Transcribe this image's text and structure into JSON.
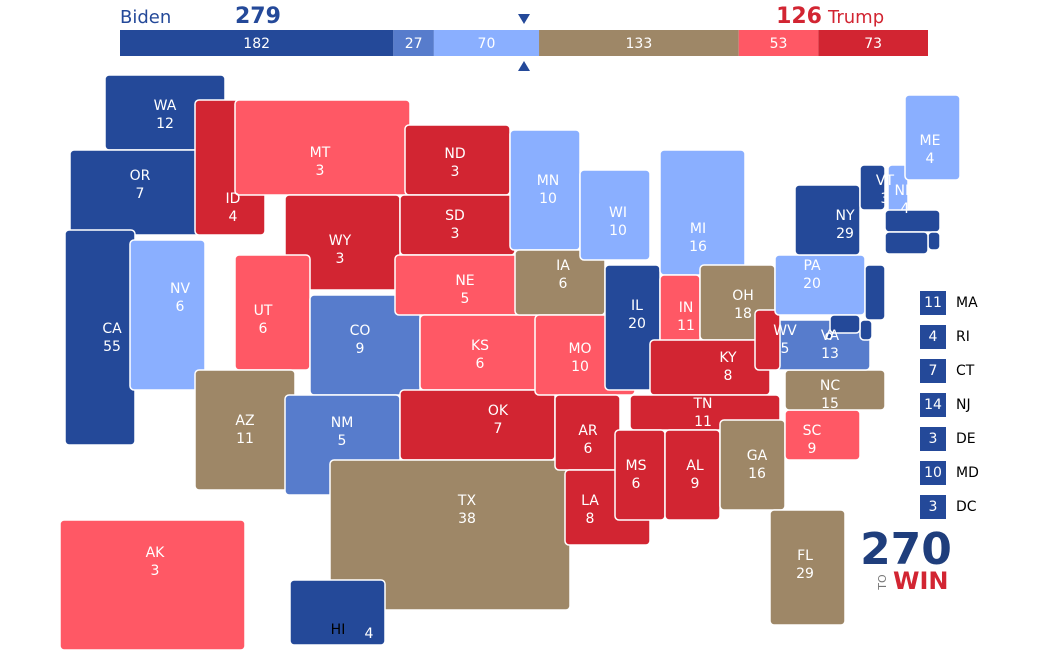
{
  "header": {
    "left": {
      "name": "Biden",
      "votes": 279,
      "color": "#244999"
    },
    "right": {
      "name": "Trump",
      "votes": 126,
      "color": "#d22532"
    },
    "segments": [
      {
        "value": 182,
        "color": "#244999"
      },
      {
        "value": 27,
        "color": "#577ccc"
      },
      {
        "value": 70,
        "color": "#8aafff"
      },
      {
        "value": 133,
        "color": "#9e8767"
      },
      {
        "value": 53,
        "color": "#ff5865"
      },
      {
        "value": 73,
        "color": "#d22532"
      }
    ]
  },
  "map": {
    "states": [
      {
        "abbr": "WA",
        "votes": 12,
        "color": "#244999"
      },
      {
        "abbr": "OR",
        "votes": 7,
        "color": "#244999"
      },
      {
        "abbr": "CA",
        "votes": 55,
        "color": "#244999"
      },
      {
        "abbr": "NV",
        "votes": 6,
        "color": "#8aafff"
      },
      {
        "abbr": "ID",
        "votes": 4,
        "color": "#d22532"
      },
      {
        "abbr": "MT",
        "votes": 3,
        "color": "#ff5865"
      },
      {
        "abbr": "WY",
        "votes": 3,
        "color": "#d22532"
      },
      {
        "abbr": "UT",
        "votes": 6,
        "color": "#ff5865"
      },
      {
        "abbr": "CO",
        "votes": 9,
        "color": "#577ccc"
      },
      {
        "abbr": "AZ",
        "votes": 11,
        "color": "#9e8767"
      },
      {
        "abbr": "NM",
        "votes": 5,
        "color": "#577ccc"
      },
      {
        "abbr": "ND",
        "votes": 3,
        "color": "#d22532"
      },
      {
        "abbr": "SD",
        "votes": 3,
        "color": "#d22532"
      },
      {
        "abbr": "NE",
        "votes": 5,
        "color": "#ff5865"
      },
      {
        "abbr": "KS",
        "votes": 6,
        "color": "#ff5865"
      },
      {
        "abbr": "OK",
        "votes": 7,
        "color": "#d22532"
      },
      {
        "abbr": "TX",
        "votes": 38,
        "color": "#9e8767"
      },
      {
        "abbr": "MN",
        "votes": 10,
        "color": "#8aafff"
      },
      {
        "abbr": "IA",
        "votes": 6,
        "color": "#9e8767"
      },
      {
        "abbr": "MO",
        "votes": 10,
        "color": "#ff5865"
      },
      {
        "abbr": "AR",
        "votes": 6,
        "color": "#d22532"
      },
      {
        "abbr": "LA",
        "votes": 8,
        "color": "#d22532"
      },
      {
        "abbr": "WI",
        "votes": 10,
        "color": "#8aafff"
      },
      {
        "abbr": "IL",
        "votes": 20,
        "color": "#244999"
      },
      {
        "abbr": "MI",
        "votes": 16,
        "color": "#8aafff"
      },
      {
        "abbr": "IN",
        "votes": 11,
        "color": "#ff5865"
      },
      {
        "abbr": "OH",
        "votes": 18,
        "color": "#9e8767"
      },
      {
        "abbr": "KY",
        "votes": 8,
        "color": "#d22532"
      },
      {
        "abbr": "TN",
        "votes": 11,
        "color": "#d22532"
      },
      {
        "abbr": "MS",
        "votes": 6,
        "color": "#d22532"
      },
      {
        "abbr": "AL",
        "votes": 9,
        "color": "#d22532"
      },
      {
        "abbr": "GA",
        "votes": 16,
        "color": "#9e8767"
      },
      {
        "abbr": "FL",
        "votes": 29,
        "color": "#9e8767"
      },
      {
        "abbr": "SC",
        "votes": 9,
        "color": "#ff5865"
      },
      {
        "abbr": "NC",
        "votes": 15,
        "color": "#9e8767"
      },
      {
        "abbr": "VA",
        "votes": 13,
        "color": "#577ccc"
      },
      {
        "abbr": "WV",
        "votes": 5,
        "color": "#d22532"
      },
      {
        "abbr": "PA",
        "votes": 20,
        "color": "#8aafff"
      },
      {
        "abbr": "NY",
        "votes": 29,
        "color": "#244999"
      },
      {
        "abbr": "VT",
        "votes": 3,
        "color": "#244999"
      },
      {
        "abbr": "NH",
        "votes": 4,
        "color": "#8aafff"
      },
      {
        "abbr": "ME",
        "votes": 4,
        "color": "#8aafff"
      },
      {
        "abbr": "MA",
        "votes": 11,
        "color": "#244999",
        "callout": true
      },
      {
        "abbr": "RI",
        "votes": 4,
        "color": "#244999",
        "callout": true
      },
      {
        "abbr": "CT",
        "votes": 7,
        "color": "#244999",
        "callout": true
      },
      {
        "abbr": "NJ",
        "votes": 14,
        "color": "#244999",
        "callout": true
      },
      {
        "abbr": "DE",
        "votes": 3,
        "color": "#244999",
        "callout": true
      },
      {
        "abbr": "MD",
        "votes": 10,
        "color": "#244999",
        "callout": true
      },
      {
        "abbr": "DC",
        "votes": 3,
        "color": "#244999",
        "callout": true
      },
      {
        "abbr": "AK",
        "votes": 3,
        "color": "#ff5865"
      },
      {
        "abbr": "HI",
        "votes": 4,
        "color": "#244999"
      }
    ]
  },
  "logo": {
    "number": "270",
    "to": "TO",
    "win": "WIN"
  }
}
